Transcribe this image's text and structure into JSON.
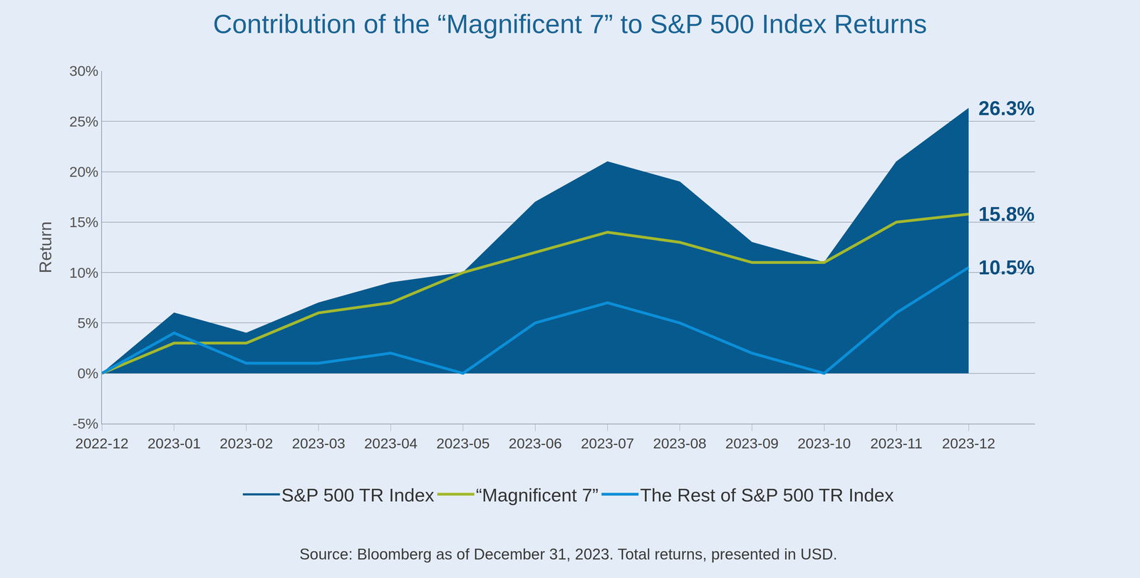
{
  "chart_data": {
    "type": "line",
    "title": "Contribution of the “Magnificent 7” to S&P 500 Index Returns",
    "y_label": "Return",
    "caption": "Source: Bloomberg as of December 31, 2023. Total returns, presented in USD.",
    "categories": [
      "2022-12",
      "2023-01",
      "2023-02",
      "2023-03",
      "2023-04",
      "2023-05",
      "2023-06",
      "2023-07",
      "2023-08",
      "2023-09",
      "2023-10",
      "2023-11",
      "2023-12"
    ],
    "series": [
      {
        "name": "S&P 500 TR Index",
        "type": "area",
        "color": "#075a8e",
        "values": [
          0,
          6,
          4,
          7,
          9,
          10,
          17,
          21,
          19,
          13,
          11,
          21,
          26.3
        ],
        "value_labels": [
          null,
          null,
          null,
          null,
          null,
          null,
          null,
          null,
          null,
          null,
          null,
          null,
          "26.3%"
        ]
      },
      {
        "name": "“Magnificent 7”",
        "type": "line",
        "color": "#a3b92e",
        "values": [
          0,
          3,
          3,
          6,
          7,
          10,
          12,
          14,
          13,
          11,
          11,
          15,
          15.8
        ],
        "value_labels": [
          null,
          null,
          null,
          null,
          null,
          null,
          null,
          null,
          null,
          null,
          null,
          null,
          "15.8%"
        ]
      },
      {
        "name": "The Rest of S&P 500 TR Index",
        "type": "line",
        "color": "#0b8fd8",
        "values": [
          0,
          4,
          1,
          1,
          2,
          0,
          5,
          7,
          5,
          2,
          0,
          6,
          10.5
        ],
        "value_labels": [
          null,
          null,
          null,
          null,
          null,
          null,
          null,
          null,
          null,
          null,
          null,
          null,
          "10.5%"
        ]
      }
    ],
    "ylim": [
      -5,
      30
    ],
    "yticks": [
      {
        "value": -5,
        "label": "-5%"
      },
      {
        "value": 0,
        "label": "0%"
      },
      {
        "value": 5,
        "label": "5%"
      },
      {
        "value": 10,
        "label": "10%"
      },
      {
        "value": 15,
        "label": "15%"
      },
      {
        "value": 20,
        "label": "20%"
      },
      {
        "value": 25,
        "label": "25%"
      },
      {
        "value": 30,
        "label": "30%"
      }
    ],
    "grid": true,
    "legend": "bottom",
    "data_labels": true
  }
}
